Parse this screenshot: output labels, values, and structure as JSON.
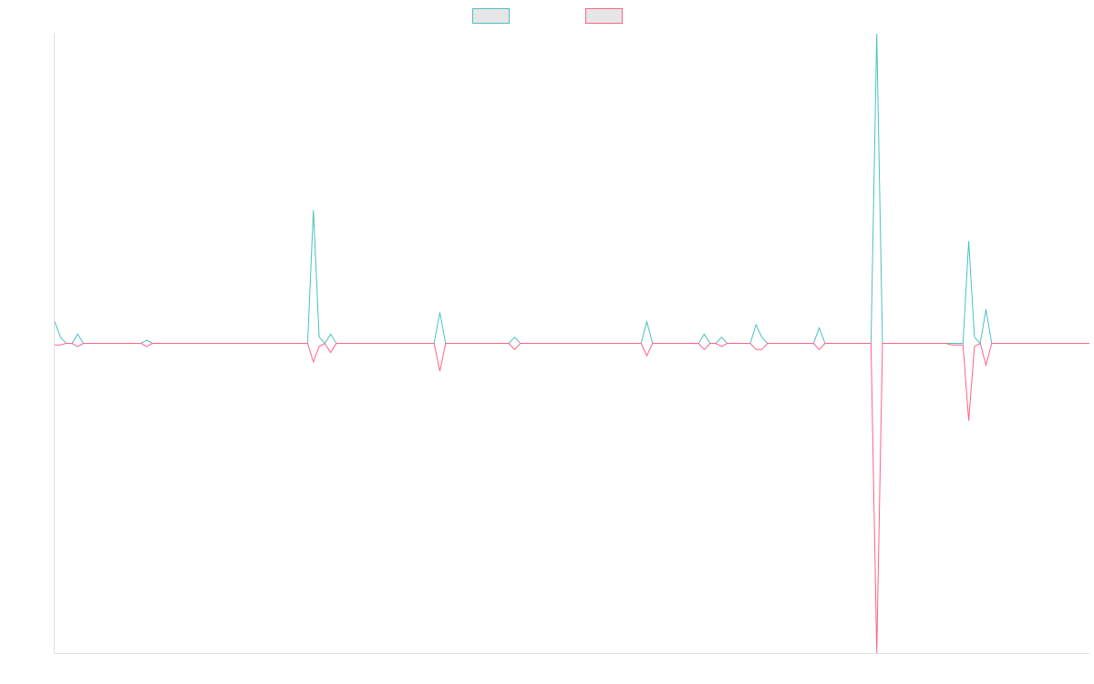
{
  "chart_data": {
    "type": "line",
    "categories": [
      null,
      null,
      null,
      null,
      null,
      null,
      null,
      null,
      null,
      null,
      null,
      null,
      null,
      null,
      null,
      null,
      null,
      null,
      null,
      null,
      null,
      null,
      null,
      null,
      null,
      null,
      null,
      null,
      null,
      null,
      null,
      null,
      null,
      null,
      null,
      null,
      null,
      null,
      null,
      null,
      null,
      null,
      null,
      null,
      null,
      null,
      null,
      null,
      null,
      null,
      null,
      null,
      null,
      null,
      null,
      null,
      null,
      null,
      null,
      null,
      null,
      null,
      null,
      null,
      null,
      null,
      null,
      null,
      null,
      null,
      null,
      null,
      null,
      null,
      null,
      null,
      null,
      null,
      null,
      null,
      null,
      null,
      null,
      null,
      null,
      null,
      null,
      null,
      null,
      null,
      null,
      null,
      null,
      null,
      null,
      null,
      null,
      null,
      null,
      null,
      null,
      null,
      null,
      null,
      null,
      null,
      null,
      null,
      null,
      null,
      null,
      null,
      null,
      null,
      null,
      null,
      null,
      null,
      null,
      null,
      null,
      null,
      null,
      null,
      null,
      null,
      null,
      null,
      null,
      null,
      null,
      null,
      null,
      null,
      null,
      null,
      null,
      null,
      null,
      null,
      null,
      null,
      null,
      null,
      null,
      null,
      null,
      null,
      null,
      null,
      null,
      null,
      null,
      null,
      null,
      null,
      null,
      null,
      null,
      null,
      null,
      null,
      null,
      null,
      null,
      null,
      null,
      null,
      null,
      null,
      null,
      null,
      null,
      null,
      null,
      null,
      null,
      null,
      null,
      null,
      null
    ],
    "series": [
      {
        "color": "#4bc0c0",
        "values": [
          7,
          2,
          0,
          0,
          3,
          0,
          0,
          0,
          0,
          0,
          0,
          0,
          0,
          0,
          0,
          0,
          1,
          0,
          0,
          0,
          0,
          0,
          0,
          0,
          0,
          0,
          0,
          0,
          0,
          0,
          0,
          0,
          0,
          0,
          0,
          0,
          0,
          0,
          0,
          0,
          0,
          0,
          0,
          0,
          0,
          43,
          2,
          0,
          3,
          0,
          0,
          0,
          0,
          0,
          0,
          0,
          0,
          0,
          0,
          0,
          0,
          0,
          0,
          0,
          0,
          0,
          0,
          10,
          0,
          0,
          0,
          0,
          0,
          0,
          0,
          0,
          0,
          0,
          0,
          0,
          2,
          0,
          0,
          0,
          0,
          0,
          0,
          0,
          0,
          0,
          0,
          0,
          0,
          0,
          0,
          0,
          0,
          0,
          0,
          0,
          0,
          0,
          0,
          7,
          0,
          0,
          0,
          0,
          0,
          0,
          0,
          0,
          0,
          3,
          0,
          0,
          2,
          0,
          0,
          0,
          0,
          0,
          6,
          2,
          0,
          0,
          0,
          0,
          0,
          0,
          0,
          0,
          0,
          5,
          0,
          0,
          0,
          0,
          0,
          0,
          0,
          0,
          0,
          100,
          0,
          0,
          0,
          0,
          0,
          0,
          0,
          0,
          0,
          0,
          0,
          0,
          0,
          0,
          0,
          33,
          2,
          0,
          11,
          0,
          0,
          0,
          0,
          0,
          0,
          0,
          0,
          0,
          0,
          0,
          0,
          0,
          0,
          0,
          0,
          0,
          0
        ]
      },
      {
        "color": "#ff6384",
        "values": [
          -0.5,
          -0.5,
          0,
          0,
          -1,
          0,
          0,
          0,
          0,
          0,
          0,
          0,
          0,
          0,
          0,
          0,
          -1,
          0,
          0,
          0,
          0,
          0,
          0,
          0,
          0,
          0,
          0,
          0,
          0,
          0,
          0,
          0,
          0,
          0,
          0,
          0,
          0,
          0,
          0,
          0,
          0,
          0,
          0,
          0,
          0,
          -6,
          -1,
          0,
          -3,
          0,
          0,
          0,
          0,
          0,
          0,
          0,
          0,
          0,
          0,
          0,
          0,
          0,
          0,
          0,
          0,
          0,
          0,
          -9,
          0,
          0,
          0,
          0,
          0,
          0,
          0,
          0,
          0,
          0,
          0,
          0,
          -2,
          0,
          0,
          0,
          0,
          0,
          0,
          0,
          0,
          0,
          0,
          0,
          0,
          0,
          0,
          0,
          0,
          0,
          0,
          0,
          0,
          0,
          0,
          -4,
          0,
          0,
          0,
          0,
          0,
          0,
          0,
          0,
          0,
          -2,
          0,
          0,
          -1,
          0,
          0,
          0,
          0,
          0,
          -2,
          -2,
          0,
          0,
          0,
          0,
          0,
          0,
          0,
          0,
          0,
          -2,
          0,
          0,
          0,
          0,
          0,
          0,
          0,
          0,
          0,
          -100,
          0,
          0,
          0,
          0,
          0,
          0,
          0,
          0,
          0,
          0,
          0,
          0,
          -0.5,
          -0.5,
          -0.5,
          -25,
          -1,
          0,
          -7,
          0,
          0,
          0,
          0,
          0,
          0,
          0,
          0,
          0,
          0,
          0,
          0,
          0,
          0,
          0,
          0,
          0,
          0
        ]
      }
    ],
    "ylim": [
      -100,
      100
    ],
    "legend": "top"
  }
}
